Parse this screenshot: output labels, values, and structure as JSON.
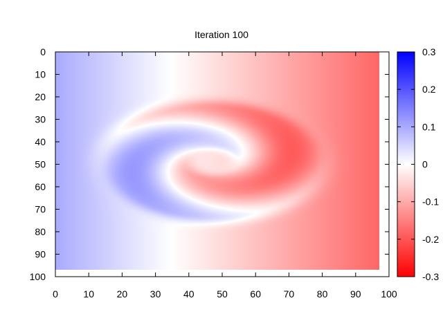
{
  "chart_data": {
    "type": "heatmap",
    "title": "Iteration 100",
    "xlabel": "",
    "ylabel": "",
    "xlim": [
      0,
      100
    ],
    "ylim": [
      0,
      100
    ],
    "y_axis_inverted": true,
    "grid": false,
    "x_ticks": [
      "0",
      "10",
      "20",
      "30",
      "40",
      "50",
      "60",
      "70",
      "80",
      "90",
      "100"
    ],
    "y_ticks": [
      "0",
      "10",
      "20",
      "30",
      "40",
      "50",
      "60",
      "70",
      "80",
      "90",
      "100"
    ],
    "colorbar": {
      "range": [
        -0.3,
        0.3
      ],
      "ticks": [
        "0.3",
        "0.2",
        "0.1",
        "0",
        "-0.1",
        "-0.2",
        "-0.3"
      ],
      "tick_values": [
        0.3,
        0.2,
        0.1,
        0,
        -0.1,
        -0.2,
        -0.3
      ],
      "color_high": "#0000ff",
      "color_mid": "#ffffff",
      "color_low": "#ff0000"
    },
    "data_extent": {
      "x": [
        0,
        97
      ],
      "y": [
        0,
        97
      ]
    },
    "field_description": {
      "left_edge_value": 0.1,
      "right_edge_value": -0.18,
      "spiral_center": [
        47,
        49
      ],
      "ring_outer_radius": 30,
      "ring_inner_radius": 10
    }
  }
}
